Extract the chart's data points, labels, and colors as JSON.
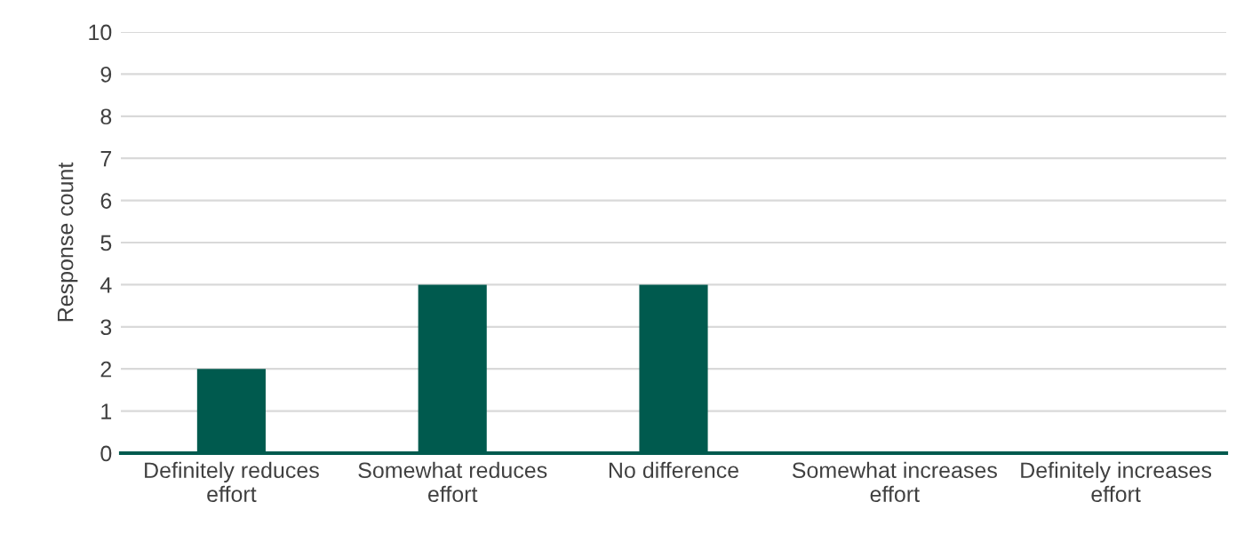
{
  "chart_data": {
    "type": "bar",
    "ylabel": "Response count",
    "categories": [
      "Definitely reduces effort",
      "Somewhat reduces effort",
      "No difference",
      "Somewhat increases effort",
      "Definitely increases effort"
    ],
    "values": [
      2,
      4,
      4,
      0,
      0
    ],
    "color": "#005a4e",
    "ylim": [
      0,
      10
    ],
    "yticks": [
      0,
      1,
      2,
      3,
      4,
      5,
      6,
      7,
      8,
      9,
      10
    ],
    "grid": "y",
    "legend": false
  }
}
